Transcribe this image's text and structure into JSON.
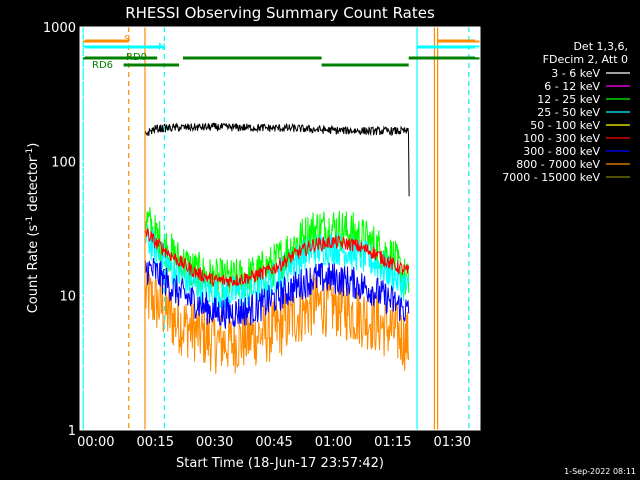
{
  "chart_data": {
    "type": "line",
    "title": "RHESSI Observing Summary Count Rates",
    "xlabel": "Start Time (18-Jun-17 23:57:42)",
    "ylabel_main": "Count Rate (s",
    "ylabel_sup1": "-1",
    "ylabel_mid": " detector",
    "ylabel_sup2": "-1",
    "ylabel_end": ")",
    "yscale": "log",
    "ylim": [
      1,
      1000
    ],
    "xlim_minutes": [
      -4,
      97
    ],
    "x_ticks": [
      {
        "value": 0,
        "label": "00:00"
      },
      {
        "value": 15,
        "label": "00:15"
      },
      {
        "value": 30,
        "label": "00:30"
      },
      {
        "value": 45,
        "label": "00:45"
      },
      {
        "value": 60,
        "label": "01:00"
      },
      {
        "value": 75,
        "label": "01:15"
      },
      {
        "value": 90,
        "label": "01:30"
      }
    ],
    "x_minor_step": 5,
    "y_ticks": [
      {
        "value": 1,
        "label": "1"
      },
      {
        "value": 10,
        "label": "10"
      },
      {
        "value": 100,
        "label": "100"
      },
      {
        "value": 1000,
        "label": "1000"
      }
    ],
    "legend": {
      "header1": "Det 1,3,6,",
      "header2": "FDecim 2, Att 0",
      "placement": "right",
      "entries": [
        {
          "label": "3 - 6 keV",
          "color": "#ffffff"
        },
        {
          "label": "6 - 12 keV",
          "color": "#ff00ff"
        },
        {
          "label": "12 - 25 keV",
          "color": "#00ff00"
        },
        {
          "label": "25 - 50 keV",
          "color": "#00ffff"
        },
        {
          "label": "50 - 100 keV",
          "color": "#ffff00"
        },
        {
          "label": "100 - 300 keV",
          "color": "#ff0000"
        },
        {
          "label": "300 - 800 keV",
          "color": "#0000ff"
        },
        {
          "label": "800 - 7000 keV",
          "color": "#ff8c00"
        },
        {
          "label": "7000 - 15000 keV",
          "color": "#808000"
        }
      ]
    },
    "series": [
      {
        "name": "3 - 6 keV",
        "color": "#000000",
        "noise": 0.07,
        "points": [
          [
            12.5,
            160
          ],
          [
            15,
            175
          ],
          [
            20,
            178
          ],
          [
            30,
            180
          ],
          [
            40,
            178
          ],
          [
            50,
            176
          ],
          [
            60,
            170
          ],
          [
            70,
            168
          ],
          [
            78,
            168
          ],
          [
            79,
            165
          ],
          [
            79.1,
            55
          ]
        ]
      },
      {
        "name": "12 - 25 keV",
        "color": "#00ff00",
        "noise": 0.38,
        "points": [
          [
            12.5,
            38
          ],
          [
            15,
            28
          ],
          [
            20,
            19
          ],
          [
            25,
            15
          ],
          [
            30,
            13
          ],
          [
            35,
            13
          ],
          [
            40,
            14
          ],
          [
            45,
            17
          ],
          [
            50,
            24
          ],
          [
            55,
            31
          ],
          [
            60,
            32
          ],
          [
            65,
            29
          ],
          [
            70,
            24
          ],
          [
            75,
            19
          ],
          [
            79,
            12
          ]
        ]
      },
      {
        "name": "25 - 50 keV",
        "color": "#00ffff",
        "noise": 0.3,
        "points": [
          [
            12.5,
            27
          ],
          [
            15,
            22
          ],
          [
            20,
            15
          ],
          [
            25,
            12
          ],
          [
            30,
            10.5
          ],
          [
            35,
            10.5
          ],
          [
            40,
            11
          ],
          [
            45,
            13.5
          ],
          [
            50,
            18
          ],
          [
            55,
            22
          ],
          [
            60,
            23
          ],
          [
            65,
            21
          ],
          [
            70,
            18
          ],
          [
            75,
            14.5
          ],
          [
            79,
            11
          ]
        ]
      },
      {
        "name": "100 - 300 keV",
        "color": "#ff0000",
        "noise": 0.12,
        "points": [
          [
            12.5,
            30
          ],
          [
            15,
            25
          ],
          [
            20,
            19
          ],
          [
            25,
            15
          ],
          [
            30,
            13
          ],
          [
            35,
            13
          ],
          [
            40,
            14
          ],
          [
            45,
            16
          ],
          [
            50,
            20
          ],
          [
            55,
            24
          ],
          [
            60,
            25
          ],
          [
            65,
            24
          ],
          [
            70,
            21
          ],
          [
            75,
            17
          ],
          [
            79,
            15
          ]
        ]
      },
      {
        "name": "300 - 800 keV",
        "color": "#0000ff",
        "noise": 0.28,
        "points": [
          [
            12.5,
            16
          ],
          [
            15,
            15
          ],
          [
            20,
            11
          ],
          [
            25,
            9
          ],
          [
            30,
            7.5
          ],
          [
            35,
            7.5
          ],
          [
            40,
            8
          ],
          [
            45,
            9.5
          ],
          [
            50,
            11.5
          ],
          [
            55,
            13.5
          ],
          [
            60,
            13.5
          ],
          [
            65,
            12.5
          ],
          [
            70,
            11
          ],
          [
            75,
            9
          ],
          [
            79,
            7.5
          ]
        ]
      },
      {
        "name": "800 - 7000 keV",
        "color": "#ff8c00",
        "noise": 0.55,
        "points": [
          [
            12.5,
            10
          ],
          [
            15,
            9
          ],
          [
            20,
            6.5
          ],
          [
            25,
            5.5
          ],
          [
            30,
            4.5
          ],
          [
            35,
            4.5
          ],
          [
            40,
            5
          ],
          [
            45,
            5.5
          ],
          [
            50,
            7
          ],
          [
            55,
            8.5
          ],
          [
            60,
            8.5
          ],
          [
            65,
            7.5
          ],
          [
            70,
            6.5
          ],
          [
            75,
            5.5
          ],
          [
            79,
            4.5
          ]
        ]
      }
    ],
    "vertical_lines": [
      {
        "x": -3.2,
        "color": "#00ffff",
        "dashed": false
      },
      {
        "x": 8.3,
        "color": "#ff8c00",
        "dashed": true
      },
      {
        "x": 12.4,
        "color": "#ff8c00",
        "dashed": false
      },
      {
        "x": 17.3,
        "color": "#00ffff",
        "dashed": true
      },
      {
        "x": 81.1,
        "color": "#00ffff",
        "dashed": false
      },
      {
        "x": 85.5,
        "color": "#ff8c00",
        "dashed": false
      },
      {
        "x": 86.3,
        "color": "#ff8c00",
        "dashed": false
      },
      {
        "x": 94.2,
        "color": "#ff8c00",
        "dashed": true
      },
      {
        "x": 94.2,
        "color": "#00ffff",
        "dashed": true
      }
    ],
    "flag_bars": [
      {
        "name": "S",
        "color": "#ff8c00",
        "segments": [
          [
            -3.2,
            8.3
          ],
          [
            86.3,
            97
          ]
        ]
      },
      {
        "name": "N",
        "color": "#00ffff",
        "segments": [
          [
            -3.2,
            17.3
          ],
          [
            81.1,
            97
          ]
        ]
      },
      {
        "name": "RD0",
        "color": "#008000",
        "segments": [
          [
            -3.2,
            15.5
          ],
          [
            22,
            57
          ],
          [
            79,
            97
          ]
        ]
      },
      {
        "name": "RD6",
        "color": "#008000",
        "segments": [
          [
            7,
            21
          ],
          [
            57,
            79
          ]
        ]
      }
    ],
    "flag_labels": [
      {
        "text": "S",
        "color": "#ff8c00"
      },
      {
        "text": "N",
        "color": "#00ffff"
      },
      {
        "text": "RD0",
        "color": "#008000"
      },
      {
        "text": "RD6",
        "color": "#008000"
      }
    ]
  },
  "footer_timestamp": "1-Sep-2022 08:11"
}
